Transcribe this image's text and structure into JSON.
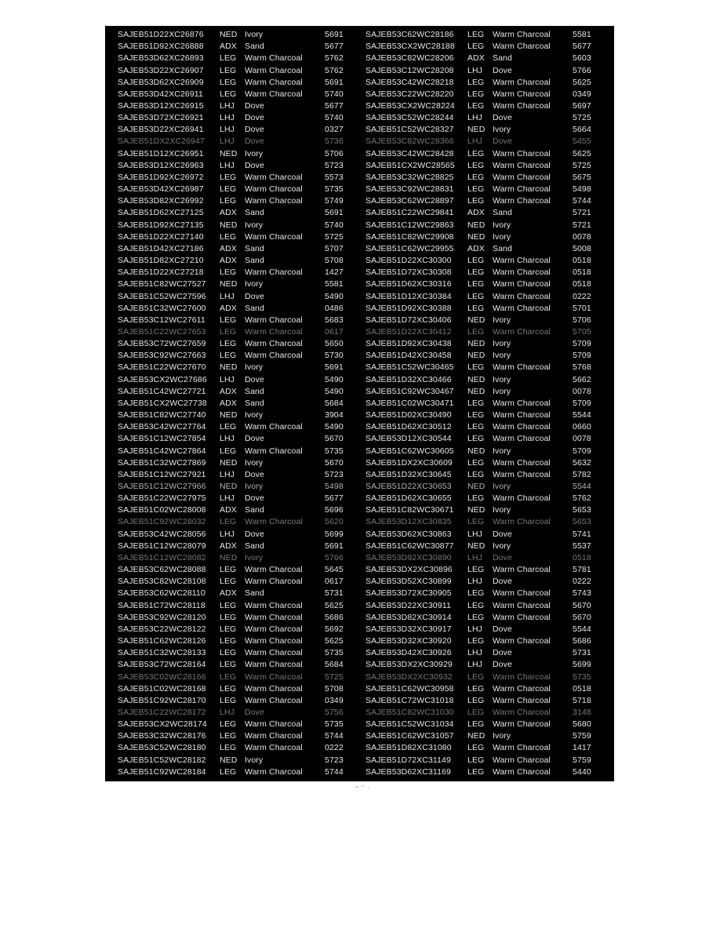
{
  "colors": {
    "page_bg": "#ffffff",
    "table_bg": "#000000",
    "text": "#e9e9e9"
  },
  "table": {
    "fields": [
      "vin",
      "color_code",
      "color_name",
      "value"
    ],
    "faded_row_indices": [
      9,
      25,
      41,
      44,
      54,
      57
    ],
    "dim_row_indices": [
      38
    ],
    "left_rows": [
      [
        "SAJEB51D22XC26876",
        "NED",
        "Ivory",
        "5691"
      ],
      [
        "SAJEB51D92XC26888",
        "ADX",
        "Sand",
        "5677"
      ],
      [
        "SAJEB53D62XC26893",
        "LEG",
        "Warm Charcoal",
        "5762"
      ],
      [
        "SAJEB53D22XC26907",
        "LEG",
        "Warm Charcoal",
        "5762"
      ],
      [
        "SAJEB53D62XC26909",
        "LEG",
        "Warm Charcoal",
        "5691"
      ],
      [
        "SAJEB53D42XC26911",
        "LEG",
        "Warm Charcoal",
        "5740"
      ],
      [
        "SAJEB53D12XC26915",
        "LHJ",
        "Dove",
        "5677"
      ],
      [
        "SAJEB53D72XC26921",
        "LHJ",
        "Dove",
        "5740"
      ],
      [
        "SAJEB53D22XC26941",
        "LHJ",
        "Dove",
        "0327"
      ],
      [
        "SAJEB51DX2XC26947",
        "LHJ",
        "Dove",
        "5736"
      ],
      [
        "SAJEB51D12XC26951",
        "NED",
        "Ivory",
        "5706"
      ],
      [
        "SAJEB53D12XC26963",
        "LHJ",
        "Dove",
        "5723"
      ],
      [
        "SAJEB51D92XC26972",
        "LEG",
        "Warm Charcoal",
        "5573"
      ],
      [
        "SAJEB53D42XC26987",
        "LEG",
        "Warm Charcoal",
        "5735"
      ],
      [
        "SAJEB53D82XC26992",
        "LEG",
        "Warm Charcoal",
        "5749"
      ],
      [
        "SAJEB51D62XC27125",
        "ADX",
        "Sand",
        "5691"
      ],
      [
        "SAJEB51D92XC27135",
        "NED",
        "Ivory",
        "5740"
      ],
      [
        "SAJEB51D22XC27140",
        "LEG",
        "Warm Charcoal",
        "5725"
      ],
      [
        "SAJEB51D42XC27186",
        "ADX",
        "Sand",
        "5707"
      ],
      [
        "SAJEB51D82XC27210",
        "ADX",
        "Sand",
        "5708"
      ],
      [
        "SAJEB51D22XC27218",
        "LEG",
        "Warm Charcoal",
        "1427"
      ],
      [
        "SAJEB51C82WC27527",
        "NED",
        "Ivory",
        "5581"
      ],
      [
        "SAJEB51C52WC27596",
        "LHJ",
        "Dove",
        "5490"
      ],
      [
        "SAJEB51C32WC27600",
        "ADX",
        "Sand",
        "0486"
      ],
      [
        "SAJEB53C12WC27611",
        "LEG",
        "Warm Charcoal",
        "5683"
      ],
      [
        "SAJEB51C22WC27653",
        "LEG",
        "Warm Charcoal",
        "0617"
      ],
      [
        "SAJEB53C72WC27659",
        "LEG",
        "Warm Charcoal",
        "5650"
      ],
      [
        "SAJEB53C92WC27663",
        "LEG",
        "Warm Charcoal",
        "5730"
      ],
      [
        "SAJEB51C22WC27670",
        "NED",
        "Ivory",
        "5691"
      ],
      [
        "SAJEB53CX2WC27686",
        "LHJ",
        "Dove",
        "5490"
      ],
      [
        "SAJEB51C42WC27721",
        "ADX",
        "Sand",
        "5490"
      ],
      [
        "SAJEB51CX2WC27738",
        "ADX",
        "Sand",
        "5684"
      ],
      [
        "SAJEB51C82WC27740",
        "NED",
        "Ivory",
        "3904"
      ],
      [
        "SAJEB53C42WC27764",
        "LEG",
        "Warm Charcoal",
        "5490"
      ],
      [
        "SAJEB51C12WC27854",
        "LHJ",
        "Dove",
        "5670"
      ],
      [
        "SAJEB51C42WC27864",
        "LEG",
        "Warm Charcoal",
        "5735"
      ],
      [
        "SAJEB51C32WC27869",
        "NED",
        "Ivory",
        "5670"
      ],
      [
        "SAJEB51C12WC27921",
        "LHJ",
        "Dove",
        "5723"
      ],
      [
        "SAJEB51C12WC27966",
        "NED",
        "Ivory",
        "5498"
      ],
      [
        "SAJEB51C22WC27975",
        "LHJ",
        "Dove",
        "5677"
      ],
      [
        "SAJEB51C02WC28008",
        "ADX",
        "Sand",
        "5696"
      ],
      [
        "SAJEB51C92WC28032",
        "LEG",
        "Warm Charcoal",
        "5620"
      ],
      [
        "SAJEB53C42WC28056",
        "LHJ",
        "Dove",
        "5699"
      ],
      [
        "SAJEB51C12WC28079",
        "ADX",
        "Sand",
        "5691"
      ],
      [
        "SAJEB51C12WC28082",
        "NED",
        "Ivory",
        "5766"
      ],
      [
        "SAJEB53C62WC28088",
        "LEG",
        "Warm Charcoal",
        "5645"
      ],
      [
        "SAJEB53C82WC28108",
        "LEG",
        "Warm Charcoal",
        "0617"
      ],
      [
        "SAJEB53C62WC28110",
        "ADX",
        "Sand",
        "5731"
      ],
      [
        "SAJEB51C72WC28118",
        "LEG",
        "Warm Charcoal",
        "5625"
      ],
      [
        "SAJEB53C92WC28120",
        "LEG",
        "Warm Charcoal",
        "5686"
      ],
      [
        "SAJEB53C22WC28122",
        "LEG",
        "Warm Charcoal",
        "5692"
      ],
      [
        "SAJEB51C62WC28126",
        "LEG",
        "Warm Charcoal",
        "5625"
      ],
      [
        "SAJEB51C32WC28133",
        "LEG",
        "Warm Charcoal",
        "5735"
      ],
      [
        "SAJEB53C72WC28164",
        "LEG",
        "Warm Charcoal",
        "5684"
      ],
      [
        "SAJEB53C02WC28166",
        "LEG",
        "Warm Charcoal",
        "5725"
      ],
      [
        "SAJEB51C02WC28168",
        "LEG",
        "Warm Charcoal",
        "5708"
      ],
      [
        "SAJEB51C92WC28170",
        "LEG",
        "Warm Charcoal",
        "0349"
      ],
      [
        "SAJEB51C22WC28172",
        "LHJ",
        "Dove",
        "5756"
      ],
      [
        "SAJEB53CX2WC28174",
        "LEG",
        "Warm Charcoal",
        "5735"
      ],
      [
        "SAJEB53C32WC28176",
        "LEG",
        "Warm Charcoal",
        "5744"
      ],
      [
        "SAJEB53C52WC28180",
        "LEG",
        "Warm Charcoal",
        "0222"
      ],
      [
        "SAJEB51C52WC28182",
        "NED",
        "Ivory",
        "5723"
      ],
      [
        "SAJEB51C92WC28184",
        "LEG",
        "Warm Charcoal",
        "5744"
      ]
    ],
    "right_rows": [
      [
        "SAJEB53C62WC28186",
        "LEG",
        "Warm Charcoal",
        "5581"
      ],
      [
        "SAJEB53CX2WC28188",
        "LEG",
        "Warm Charcoal",
        "5677"
      ],
      [
        "SAJEB53C82WC28206",
        "ADX",
        "Sand",
        "5603"
      ],
      [
        "SAJEB53C12WC28208",
        "LHJ",
        "Dove",
        "5766"
      ],
      [
        "SAJEB53C42WC28218",
        "LEG",
        "Warm Charcoal",
        "5625"
      ],
      [
        "SAJEB53C22WC28220",
        "LEG",
        "Warm Charcoal",
        "0349"
      ],
      [
        "SAJEB53CX2WC28224",
        "LEG",
        "Warm Charcoal",
        "5697"
      ],
      [
        "SAJEB53C52WC28244",
        "LHJ",
        "Dove",
        "5725"
      ],
      [
        "SAJEB51C52WC28327",
        "NED",
        "Ivory",
        "5664"
      ],
      [
        "SAJEB53C82WC28366",
        "LHJ",
        "Dove",
        "5455"
      ],
      [
        "SAJEB53C42WC28428",
        "LEG",
        "Warm Charcoal",
        "5625"
      ],
      [
        "SAJEB51CX2WC28565",
        "LEG",
        "Warm Charcoal",
        "5725"
      ],
      [
        "SAJEB53C32WC28825",
        "LEG",
        "Warm Charcoal",
        "5675"
      ],
      [
        "SAJEB53C92WC28831",
        "LEG",
        "Warm Charcoal",
        "5498"
      ],
      [
        "SAJEB53C62WC28897",
        "LEG",
        "Warm Charcoal",
        "5744"
      ],
      [
        "SAJEB51C22WC29841",
        "ADX",
        "Sand",
        "5721"
      ],
      [
        "SAJEB51C12WC29863",
        "NED",
        "Ivory",
        "5721"
      ],
      [
        "SAJEB51C82WC29908",
        "NED",
        "Ivory",
        "0078"
      ],
      [
        "SAJEB51C62WC29955",
        "ADX",
        "Sand",
        "5008"
      ],
      [
        "SAJEB51D22XC30300",
        "LEG",
        "Warm Charcoal",
        "0518"
      ],
      [
        "SAJEB51D72XC30308",
        "LEG",
        "Warm Charcoal",
        "0518"
      ],
      [
        "SAJEB51D62XC30316",
        "LEG",
        "Warm Charcoal",
        "0518"
      ],
      [
        "SAJEB51D12XC30384",
        "LEG",
        "Warm Charcoal",
        "0222"
      ],
      [
        "SAJEB51D92XC30388",
        "LEG",
        "Warm Charcoal",
        "5701"
      ],
      [
        "SAJEB51D72XC30406",
        "NED",
        "Ivory",
        "5706"
      ],
      [
        "SAJEB51D22XC30412",
        "LEG",
        "Warm Charcoal",
        "5705"
      ],
      [
        "SAJEB51D92XC30438",
        "NED",
        "Ivory",
        "5709"
      ],
      [
        "SAJEB51D42XC30458",
        "NED",
        "Ivory",
        "5709"
      ],
      [
        "SAJEB51C52WC30465",
        "LEG",
        "Warm Charcoal",
        "5768"
      ],
      [
        "SAJEB51D32XC30466",
        "NED",
        "Ivory",
        "5662"
      ],
      [
        "SAJEB51C92WC30467",
        "NED",
        "Ivory",
        "0078"
      ],
      [
        "SAJEB51C02WC30471",
        "LEG",
        "Warm Charcoal",
        "5709"
      ],
      [
        "SAJEB51D02XC30490",
        "LEG",
        "Warm Charcoal",
        "5544"
      ],
      [
        "SAJEB51D62XC30512",
        "LEG",
        "Warm Charcoal",
        "0660"
      ],
      [
        "SAJEB53D12XC30544",
        "LEG",
        "Warm Charcoal",
        "0078"
      ],
      [
        "SAJEB51C62WC30605",
        "NED",
        "Ivory",
        "5709"
      ],
      [
        "SAJEB51DX2XC30609",
        "LEG",
        "Warm Charcoal",
        "5632"
      ],
      [
        "SAJEB51D32XC30645",
        "LEG",
        "Warm Charcoal",
        "5782"
      ],
      [
        "SAJEB51D22XC30653",
        "NED",
        "Ivory",
        "5544"
      ],
      [
        "SAJEB51D62XC30655",
        "LEG",
        "Warm Charcoal",
        "5762"
      ],
      [
        "SAJEB51C82WC30671",
        "NED",
        "Ivory",
        "5653"
      ],
      [
        "SAJEB53D12XC30835",
        "LEG",
        "Warm Charcoal",
        "5653"
      ],
      [
        "SAJEB53D62XC30863",
        "LHJ",
        "Dove",
        "5741"
      ],
      [
        "SAJEB51C62WC30877",
        "NED",
        "Ivory",
        "5537"
      ],
      [
        "SAJEB53D92XC30890",
        "LHJ",
        "Dove",
        "0518"
      ],
      [
        "SAJEB53DX2XC30896",
        "LEG",
        "Warm Charcoal",
        "5781"
      ],
      [
        "SAJEB53D52XC30899",
        "LHJ",
        "Dove",
        "0222"
      ],
      [
        "SAJEB53D72XC30905",
        "LEG",
        "Warm Charcoal",
        "5743"
      ],
      [
        "SAJEB53D22XC30911",
        "LEG",
        "Warm Charcoal",
        "5670"
      ],
      [
        "SAJEB53D82XC30914",
        "LEG",
        "Warm Charcoal",
        "5670"
      ],
      [
        "SAJEB53D32XC30917",
        "LHJ",
        "Dove",
        "5544"
      ],
      [
        "SAJEB53D32XC30920",
        "LEG",
        "Warm Charcoal",
        "5686"
      ],
      [
        "SAJEB53D42XC30926",
        "LHJ",
        "Dove",
        "5731"
      ],
      [
        "SAJEB53DX2XC30929",
        "LHJ",
        "Dove",
        "5699"
      ],
      [
        "SAJEB53DX2XC30932",
        "LEG",
        "Warm Charcoal",
        "5735"
      ],
      [
        "SAJEB51C62WC30958",
        "LEG",
        "Warm Charcoal",
        "0518"
      ],
      [
        "SAJEB51C72WC31018",
        "LEG",
        "Warm Charcoal",
        "5718"
      ],
      [
        "SAJEB51C82WC31030",
        "LEG",
        "Warm Charcoal",
        "3148"
      ],
      [
        "SAJEB51C52WC31034",
        "LEG",
        "Warm Charcoal",
        "5680"
      ],
      [
        "SAJEB51C62WC31057",
        "NED",
        "Ivory",
        "5759"
      ],
      [
        "SAJEB51D82XC31080",
        "LEG",
        "Warm Charcoal",
        "1417"
      ],
      [
        "SAJEB51D72XC31149",
        "LEG",
        "Warm Charcoal",
        "5759"
      ],
      [
        "SAJEB53D62XC31169",
        "LEG",
        "Warm Charcoal",
        "5440"
      ]
    ]
  }
}
